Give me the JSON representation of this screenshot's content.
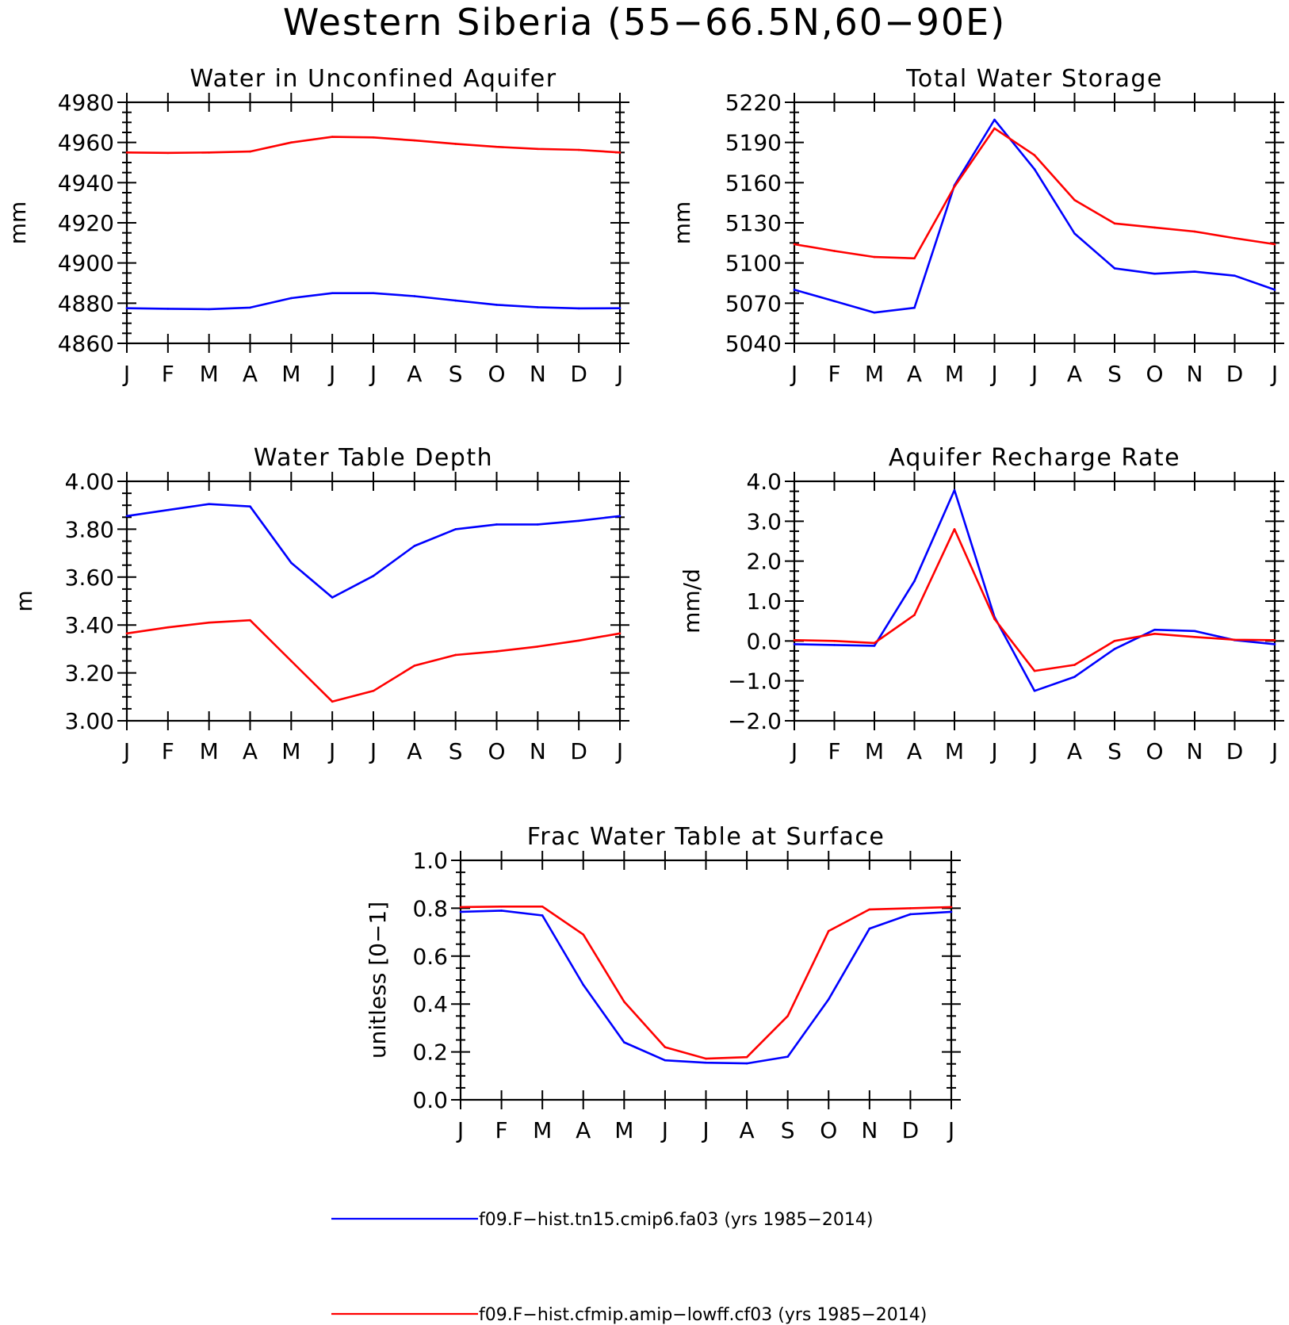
{
  "title": "Western Siberia (55−66.5N,60−90E)",
  "series_colors": {
    "tn15": "#0000ff",
    "lowff": "#ff0000"
  },
  "legend": [
    {
      "label": "f09.F−hist.tn15.cmip6.fa03 (yrs 1985−2014)",
      "color": "#0000ff"
    },
    {
      "label": "f09.F−hist.cfmip.amip−lowff.cf03 (yrs 1985−2014)",
      "color": "#ff0000"
    }
  ],
  "chart_data": [
    {
      "type": "line",
      "title": "Water in Unconfined Aquifer",
      "ylabel": "mm",
      "categories": [
        "J",
        "F",
        "M",
        "A",
        "M",
        "J",
        "J",
        "A",
        "S",
        "O",
        "N",
        "D",
        "J"
      ],
      "ylim": [
        4860,
        4980
      ],
      "yticks": [
        "4860",
        "4880",
        "4900",
        "4920",
        "4940",
        "4960",
        "4980"
      ],
      "y_minor_step": 5,
      "series": [
        {
          "name": "f09.F−hist.tn15.cmip6.fa03 (yrs 1985−2014)",
          "color": "#0000ff",
          "values": [
            4877.5,
            4877.2,
            4877.0,
            4877.8,
            4882.5,
            4885.0,
            4885.0,
            4883.5,
            4881.3,
            4879.2,
            4878.0,
            4877.4,
            4877.5
          ]
        },
        {
          "name": "f09.F−hist.cfmip.amip−lowff.cf03 (yrs 1985−2014)",
          "color": "#ff0000",
          "values": [
            4955.0,
            4954.8,
            4955.0,
            4955.5,
            4960.0,
            4962.8,
            4962.5,
            4961.0,
            4959.3,
            4957.8,
            4956.8,
            4956.3,
            4955.0
          ]
        }
      ]
    },
    {
      "type": "line",
      "title": "Total Water Storage",
      "ylabel": "mm",
      "categories": [
        "J",
        "F",
        "M",
        "A",
        "M",
        "J",
        "J",
        "A",
        "S",
        "O",
        "N",
        "D",
        "J"
      ],
      "ylim": [
        5040,
        5220
      ],
      "yticks": [
        "5040",
        "5070",
        "5100",
        "5130",
        "5160",
        "5190",
        "5220"
      ],
      "y_minor_step": 7.5,
      "series": [
        {
          "name": "f09.F−hist.tn15.cmip6.fa03 (yrs 1985−2014)",
          "color": "#0000ff",
          "values": [
            5080.0,
            5071.5,
            5063.0,
            5066.5,
            5158.0,
            5207.0,
            5170.0,
            5122.0,
            5096.0,
            5092.0,
            5093.5,
            5090.5,
            5080.0
          ]
        },
        {
          "name": "f09.F−hist.cfmip.amip−lowff.cf03 (yrs 1985−2014)",
          "color": "#ff0000",
          "values": [
            5114.0,
            5109.0,
            5104.5,
            5103.5,
            5157.0,
            5200.5,
            5180.5,
            5147.0,
            5129.5,
            5126.5,
            5123.5,
            5118.5,
            5114.0
          ]
        }
      ]
    },
    {
      "type": "line",
      "title": "Water Table Depth",
      "ylabel": "m",
      "categories": [
        "J",
        "F",
        "M",
        "A",
        "M",
        "J",
        "J",
        "A",
        "S",
        "O",
        "N",
        "D",
        "J"
      ],
      "ylim": [
        3.0,
        4.0
      ],
      "yticks": [
        "3.00",
        "3.20",
        "3.40",
        "3.60",
        "3.80",
        "4.00"
      ],
      "y_minor_step": 0.05,
      "series": [
        {
          "name": "f09.F−hist.tn15.cmip6.fa03 (yrs 1985−2014)",
          "color": "#0000ff",
          "values": [
            3.855,
            3.88,
            3.905,
            3.895,
            3.66,
            3.515,
            3.605,
            3.73,
            3.8,
            3.82,
            3.82,
            3.835,
            3.855
          ]
        },
        {
          "name": "f09.F−hist.cfmip.amip−lowff.cf03 (yrs 1985−2014)",
          "color": "#ff0000",
          "values": [
            3.365,
            3.39,
            3.41,
            3.42,
            3.25,
            3.08,
            3.125,
            3.23,
            3.275,
            3.29,
            3.31,
            3.335,
            3.365
          ]
        }
      ]
    },
    {
      "type": "line",
      "title": "Aquifer Recharge Rate",
      "ylabel": "mm/d",
      "categories": [
        "J",
        "F",
        "M",
        "A",
        "M",
        "J",
        "J",
        "A",
        "S",
        "O",
        "N",
        "D",
        "J"
      ],
      "ylim": [
        -2.0,
        4.0
      ],
      "yticks": [
        "−2.0",
        "−1.0",
        "0.0",
        "1.0",
        "2.0",
        "3.0",
        "4.0"
      ],
      "y_minor_step": 0.25,
      "series": [
        {
          "name": "f09.F−hist.tn15.cmip6.fa03 (yrs 1985−2014)",
          "color": "#0000ff",
          "values": [
            -0.08,
            -0.1,
            -0.12,
            1.5,
            3.78,
            0.6,
            -1.25,
            -0.9,
            -0.2,
            0.28,
            0.25,
            0.02,
            -0.08
          ]
        },
        {
          "name": "f09.F−hist.cfmip.amip−lowff.cf03 (yrs 1985−2014)",
          "color": "#ff0000",
          "values": [
            0.02,
            0.0,
            -0.05,
            0.65,
            2.8,
            0.55,
            -0.75,
            -0.6,
            0.0,
            0.18,
            0.1,
            0.03,
            0.02
          ]
        }
      ]
    },
    {
      "type": "line",
      "title": "Frac Water Table at Surface",
      "ylabel": "unitless [0−1]",
      "categories": [
        "J",
        "F",
        "M",
        "A",
        "M",
        "J",
        "J",
        "A",
        "S",
        "O",
        "N",
        "D",
        "J"
      ],
      "ylim": [
        0.0,
        1.0
      ],
      "yticks": [
        "0.0",
        "0.2",
        "0.4",
        "0.6",
        "0.8",
        "1.0"
      ],
      "y_minor_step": 0.05,
      "series": [
        {
          "name": "f09.F−hist.tn15.cmip6.fa03 (yrs 1985−2014)",
          "color": "#0000ff",
          "values": [
            0.785,
            0.79,
            0.77,
            0.48,
            0.24,
            0.165,
            0.155,
            0.152,
            0.18,
            0.42,
            0.715,
            0.775,
            0.785
          ]
        },
        {
          "name": "f09.F−hist.cfmip.amip−lowff.cf03 (yrs 1985−2014)",
          "color": "#ff0000",
          "values": [
            0.805,
            0.807,
            0.807,
            0.69,
            0.41,
            0.22,
            0.172,
            0.178,
            0.35,
            0.705,
            0.795,
            0.8,
            0.805
          ]
        }
      ]
    }
  ]
}
